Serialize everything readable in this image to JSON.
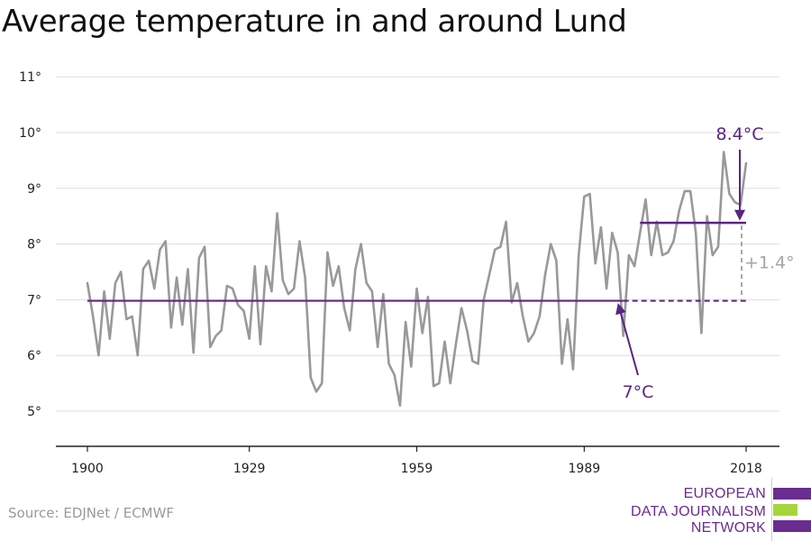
{
  "chart_data": {
    "type": "line",
    "title": "Average temperature in and around Lund",
    "xlabel": "",
    "ylabel": "",
    "xlim": [
      1900,
      2018
    ],
    "ylim": [
      4.3,
      11.3
    ],
    "yticks": [
      5,
      6,
      7,
      8,
      9,
      10,
      11
    ],
    "ytick_labels": [
      "5°",
      "6°",
      "7°",
      "8°",
      "9°",
      "10°",
      "11°"
    ],
    "xticks": [
      1900,
      1929,
      1959,
      1989,
      2018
    ],
    "xtick_labels": [
      "1900",
      "1929",
      "1959",
      "1989",
      "2018"
    ],
    "grid": true,
    "series": [
      {
        "color": "#999999",
        "x": [
          1900,
          1901,
          1902,
          1903,
          1904,
          1905,
          1906,
          1907,
          1908,
          1909,
          1910,
          1911,
          1912,
          1913,
          1914,
          1915,
          1916,
          1917,
          1918,
          1919,
          1920,
          1921,
          1922,
          1923,
          1924,
          1925,
          1926,
          1927,
          1928,
          1929,
          1930,
          1931,
          1932,
          1933,
          1934,
          1935,
          1936,
          1937,
          1938,
          1939,
          1940,
          1941,
          1942,
          1943,
          1944,
          1945,
          1946,
          1947,
          1948,
          1949,
          1950,
          1951,
          1952,
          1953,
          1954,
          1955,
          1956,
          1957,
          1958,
          1959,
          1960,
          1961,
          1962,
          1963,
          1964,
          1965,
          1966,
          1967,
          1968,
          1969,
          1970,
          1971,
          1972,
          1973,
          1974,
          1975,
          1976,
          1977,
          1978,
          1979,
          1980,
          1981,
          1982,
          1983,
          1984,
          1985,
          1986,
          1987,
          1988,
          1989,
          1990,
          1991,
          1992,
          1993,
          1994,
          1995,
          1996,
          1997,
          1998,
          1999,
          2000,
          2001,
          2002,
          2003,
          2004,
          2005,
          2006,
          2007,
          2008,
          2009,
          2010,
          2011,
          2012,
          2013,
          2014,
          2015,
          2016,
          2017,
          2018
        ],
        "y": [
          7.3,
          6.7,
          6.0,
          7.15,
          6.3,
          7.3,
          7.5,
          6.65,
          6.7,
          6.0,
          7.55,
          7.7,
          7.2,
          7.9,
          8.05,
          6.5,
          7.4,
          6.55,
          7.55,
          6.05,
          7.75,
          7.95,
          6.15,
          6.35,
          6.45,
          7.25,
          7.2,
          6.9,
          6.8,
          6.3,
          7.6,
          6.2,
          7.6,
          7.15,
          8.55,
          7.35,
          7.1,
          7.2,
          8.05,
          7.4,
          5.6,
          5.35,
          5.5,
          7.85,
          7.25,
          7.6,
          6.85,
          6.45,
          7.55,
          8.0,
          7.3,
          7.15,
          6.15,
          7.1,
          5.85,
          5.65,
          5.1,
          6.6,
          5.8,
          7.2,
          6.4,
          7.05,
          5.45,
          5.5,
          6.25,
          5.5,
          6.2,
          6.85,
          6.45,
          5.9,
          5.85,
          7.0,
          7.45,
          7.9,
          7.95,
          8.4,
          6.95,
          7.3,
          6.7,
          6.25,
          6.4,
          6.7,
          7.45,
          8.0,
          7.7,
          5.85,
          6.65,
          5.75,
          7.8,
          8.85,
          8.9,
          7.65,
          8.3,
          7.2,
          8.2,
          7.85,
          6.35,
          7.8,
          7.6,
          8.2,
          8.8,
          7.8,
          8.4,
          7.8,
          7.85,
          8.05,
          8.6,
          8.95,
          8.95,
          8.2,
          6.4,
          8.5,
          7.8,
          7.95,
          9.65,
          8.9,
          8.75,
          8.7,
          9.45
        ]
      }
    ],
    "reference_lines": [
      {
        "label": "7°C",
        "value": 6.98,
        "color": "#5b2480"
      },
      {
        "label": "8.4°C",
        "value": 8.38,
        "color": "#5b2480"
      }
    ],
    "annotations": {
      "difference": "+1.4°",
      "difference_color": "#a6a6a6"
    }
  },
  "source": "Source: EDJNet / ECMWF",
  "logo": {
    "lines": [
      "EUROPEAN",
      "DATA JOURNALISM",
      "NETWORK"
    ],
    "colors": [
      "#6a2c8f",
      "#a6d53b",
      "#6a2c8f"
    ]
  }
}
